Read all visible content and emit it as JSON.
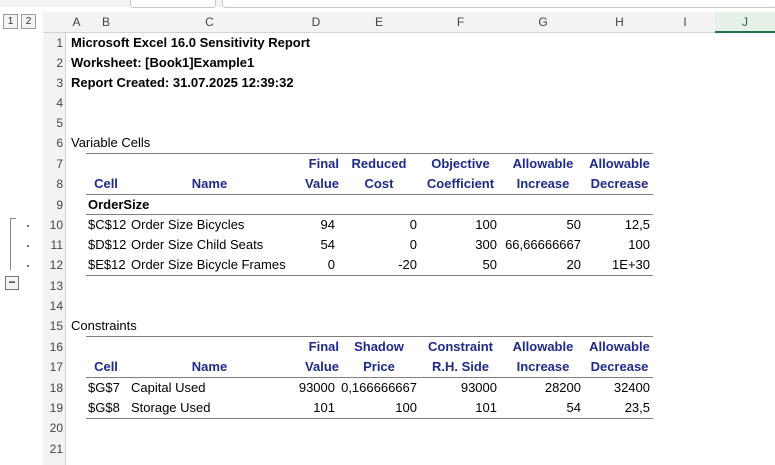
{
  "outline": {
    "levels": [
      "1",
      "2"
    ],
    "collapse_symbol": "−"
  },
  "columns": [
    "A",
    "B",
    "C",
    "D",
    "E",
    "F",
    "G",
    "H",
    "I",
    "J"
  ],
  "rows": [
    "1",
    "2",
    "3",
    "4",
    "5",
    "6",
    "7",
    "8",
    "9",
    "10",
    "11",
    "12",
    "13",
    "14",
    "15",
    "16",
    "17",
    "18",
    "19",
    "20",
    "21"
  ],
  "report": {
    "title": "Microsoft Excel 16.0 Sensitivity Report",
    "worksheet": "Worksheet: [Book1]Example1",
    "created": "Report Created: 31.07.2025 12:39:32"
  },
  "variable_cells": {
    "section_label": "Variable Cells",
    "headers_top": {
      "final": "Final",
      "reduced": "Reduced",
      "objective": "Objective",
      "inc": "Allowable",
      "dec": "Allowable"
    },
    "headers_bottom": {
      "cell": "Cell",
      "name": "Name",
      "final": "Value",
      "reduced": "Cost",
      "objective": "Coefficient",
      "inc": "Increase",
      "dec": "Decrease"
    },
    "group": "OrderSize",
    "rows": [
      {
        "cell": "$C$12",
        "name": "Order Size Bicycles",
        "final": "94",
        "reduced": "0",
        "objective": "100",
        "inc": "50",
        "dec": "12,5"
      },
      {
        "cell": "$D$12",
        "name": "Order Size Child Seats",
        "final": "54",
        "reduced": "0",
        "objective": "300",
        "inc": "66,66666667",
        "dec": "100"
      },
      {
        "cell": "$E$12",
        "name": "Order Size Bicycle Frames",
        "final": "0",
        "reduced": "-20",
        "objective": "50",
        "inc": "20",
        "dec": "1E+30"
      }
    ]
  },
  "constraints": {
    "section_label": "Constraints",
    "headers_top": {
      "final": "Final",
      "shadow": "Shadow",
      "rhs": "Constraint",
      "inc": "Allowable",
      "dec": "Allowable"
    },
    "headers_bottom": {
      "cell": "Cell",
      "name": "Name",
      "final": "Value",
      "shadow": "Price",
      "rhs": "R.H. Side",
      "inc": "Increase",
      "dec": "Decrease"
    },
    "rows": [
      {
        "cell": "$G$7",
        "name": "Capital Used",
        "final": "93000",
        "shadow": "0,166666667",
        "rhs": "93000",
        "inc": "28200",
        "dec": "32400"
      },
      {
        "cell": "$G$8",
        "name": "Storage Used",
        "final": "101",
        "shadow": "100",
        "rhs": "101",
        "inc": "54",
        "dec": "23,5"
      }
    ]
  },
  "colors": {
    "header_text": "#1f2a8a",
    "grid_bg": "#f3f3f3",
    "selected_col": "#217346"
  }
}
